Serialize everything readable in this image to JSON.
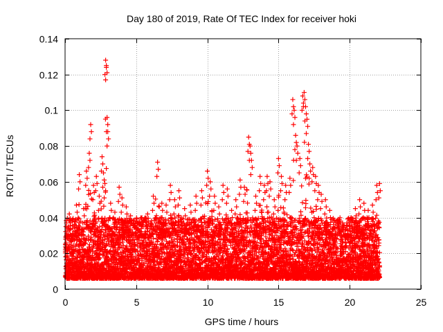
{
  "chart_data": {
    "type": "scatter",
    "title": "Day 180 of 2019, Rate Of TEC Index for receiver hoki",
    "xlabel": "GPS time / hours",
    "ylabel": "ROTI / TECUs",
    "xlim": [
      0,
      25
    ],
    "ylim": [
      0,
      0.14
    ],
    "x_ticks": [
      0,
      5,
      10,
      15,
      20,
      25
    ],
    "x_tick_labels": [
      "0",
      "5",
      "10",
      "15",
      "20",
      "25"
    ],
    "y_ticks": [
      0,
      0.02,
      0.04,
      0.06,
      0.08,
      0.1,
      0.12,
      0.14
    ],
    "y_tick_labels": [
      "0",
      "0.02",
      "0.04",
      "0.06",
      "0.08",
      "0.1",
      "0.12",
      "0.14"
    ],
    "grid": true,
    "marker": "+",
    "marker_color": "#ff0000",
    "series": [
      {
        "name": "ROTI",
        "x": [
          0.1,
          0.3,
          0.5,
          0.8,
          1.0,
          1.3,
          1.5,
          1.7,
          1.8,
          2.0,
          2.2,
          2.4,
          2.6,
          2.7,
          2.8,
          2.85,
          2.9,
          2.95,
          3.0,
          3.2,
          3.5,
          3.8,
          4.0,
          4.3,
          4.6,
          5.0,
          5.4,
          5.8,
          6.2,
          6.5,
          6.8,
          7.1,
          7.4,
          7.7,
          8.0,
          8.4,
          8.8,
          9.2,
          9.6,
          10.0,
          10.2,
          10.5,
          10.8,
          11.1,
          11.4,
          11.7,
          12.0,
          12.3,
          12.6,
          12.9,
          13.0,
          13.1,
          13.4,
          13.7,
          14.0,
          14.2,
          14.4,
          14.7,
          15.0,
          15.2,
          15.5,
          15.8,
          16.0,
          16.1,
          16.2,
          16.3,
          16.5,
          16.7,
          16.8,
          16.9,
          17.0,
          17.1,
          17.2,
          17.4,
          17.6,
          17.8,
          18.0,
          18.3,
          18.6,
          18.9,
          19.2,
          19.5,
          19.8,
          20.1,
          20.4,
          20.7,
          21.0,
          21.3,
          21.6,
          21.9,
          22.1
        ],
        "y": [
          0.037,
          0.042,
          0.038,
          0.047,
          0.064,
          0.045,
          0.066,
          0.076,
          0.092,
          0.058,
          0.063,
          0.052,
          0.074,
          0.065,
          0.059,
          0.128,
          0.125,
          0.096,
          0.088,
          0.048,
          0.043,
          0.057,
          0.051,
          0.046,
          0.041,
          0.038,
          0.04,
          0.042,
          0.052,
          0.071,
          0.048,
          0.047,
          0.058,
          0.05,
          0.055,
          0.045,
          0.047,
          0.052,
          0.055,
          0.066,
          0.06,
          0.052,
          0.046,
          0.058,
          0.056,
          0.044,
          0.05,
          0.061,
          0.057,
          0.085,
          0.08,
          0.072,
          0.052,
          0.063,
          0.058,
          0.063,
          0.06,
          0.05,
          0.073,
          0.063,
          0.058,
          0.062,
          0.106,
          0.1,
          0.086,
          0.08,
          0.073,
          0.108,
          0.11,
          0.102,
          0.095,
          0.081,
          0.07,
          0.068,
          0.063,
          0.058,
          0.053,
          0.05,
          0.044,
          0.038,
          0.039,
          0.036,
          0.037,
          0.04,
          0.045,
          0.05,
          0.048,
          0.044,
          0.047,
          0.058,
          0.059
        ]
      }
    ]
  }
}
